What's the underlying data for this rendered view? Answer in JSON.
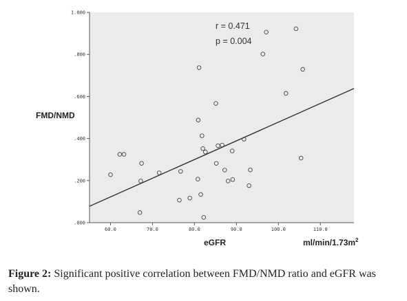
{
  "chart_data": {
    "type": "scatter",
    "xlabel": "eGFR",
    "xunit": "ml/min/1.73m",
    "xunit_sup": "2",
    "ylabel": "FMD/NMD",
    "xlim": [
      55,
      118
    ],
    "ylim": [
      0,
      1.0
    ],
    "x_ticks": [
      60,
      70,
      80,
      90,
      100,
      110
    ],
    "x_tick_labels": [
      "60.0",
      "70.0",
      "80.0",
      "90.0",
      "100.0",
      "110.0"
    ],
    "y_ticks": [
      0,
      0.2,
      0.4,
      0.6,
      0.8,
      1.0
    ],
    "y_tick_labels": [
      ".000",
      ".200",
      ".400",
      ".600",
      ".800",
      "1.000"
    ],
    "annotations": [
      "r = 0.471",
      "p = 0.004"
    ],
    "grid": false,
    "plot_background": "#ebebeb",
    "point_color": "#444444",
    "fit_line": {
      "x": [
        55,
        118
      ],
      "y": [
        0.078,
        0.638
      ],
      "color": "#333333"
    },
    "points": [
      {
        "x": 60.0,
        "y": 0.228
      },
      {
        "x": 62.2,
        "y": 0.325
      },
      {
        "x": 63.2,
        "y": 0.325
      },
      {
        "x": 67.0,
        "y": 0.048
      },
      {
        "x": 67.2,
        "y": 0.198
      },
      {
        "x": 67.4,
        "y": 0.282
      },
      {
        "x": 71.6,
        "y": 0.237
      },
      {
        "x": 76.4,
        "y": 0.107
      },
      {
        "x": 76.7,
        "y": 0.244
      },
      {
        "x": 78.9,
        "y": 0.117
      },
      {
        "x": 80.8,
        "y": 0.207
      },
      {
        "x": 80.9,
        "y": 0.488
      },
      {
        "x": 81.1,
        "y": 0.737
      },
      {
        "x": 81.5,
        "y": 0.134
      },
      {
        "x": 81.8,
        "y": 0.413
      },
      {
        "x": 82.0,
        "y": 0.352
      },
      {
        "x": 82.2,
        "y": 0.025
      },
      {
        "x": 82.6,
        "y": 0.336
      },
      {
        "x": 85.1,
        "y": 0.567
      },
      {
        "x": 85.2,
        "y": 0.282
      },
      {
        "x": 85.6,
        "y": 0.366
      },
      {
        "x": 86.6,
        "y": 0.369
      },
      {
        "x": 87.2,
        "y": 0.25
      },
      {
        "x": 88.0,
        "y": 0.198
      },
      {
        "x": 89.0,
        "y": 0.341
      },
      {
        "x": 89.1,
        "y": 0.205
      },
      {
        "x": 91.8,
        "y": 0.397
      },
      {
        "x": 93.0,
        "y": 0.176
      },
      {
        "x": 93.3,
        "y": 0.251
      },
      {
        "x": 96.3,
        "y": 0.802
      },
      {
        "x": 97.1,
        "y": 0.906
      },
      {
        "x": 101.8,
        "y": 0.615
      },
      {
        "x": 104.2,
        "y": 0.922
      },
      {
        "x": 105.4,
        "y": 0.307
      },
      {
        "x": 105.8,
        "y": 0.729
      }
    ]
  },
  "caption": {
    "label": "Figure 2:",
    "text": " Significant positive correlation between FMD/NMD ratio and eGFR was shown."
  }
}
